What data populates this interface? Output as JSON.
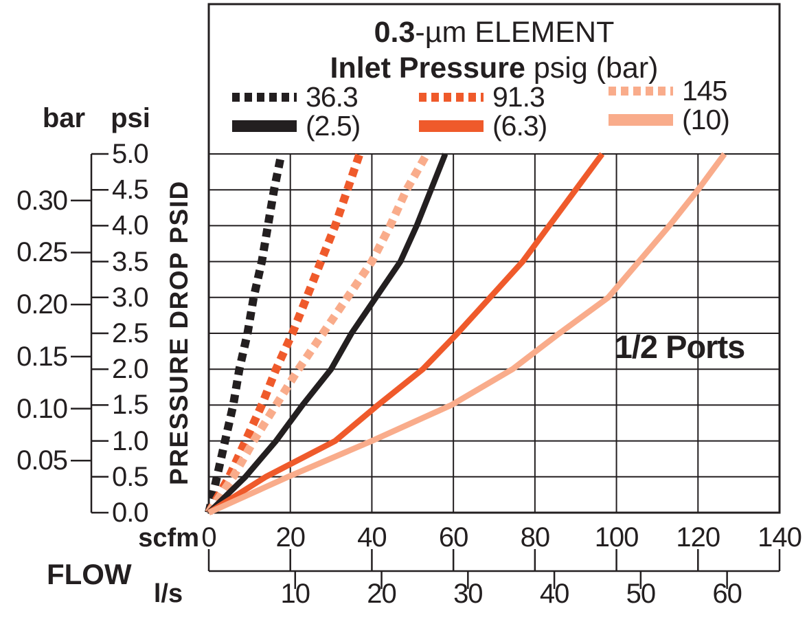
{
  "title": {
    "bold": "0.3",
    "rest": "-µm ELEMENT",
    "sub_bold": "Inlet Pressure",
    "sub_rest": " psig (bar)"
  },
  "legend": {
    "items": [
      {
        "psig": "36.3",
        "bar": "(2.5)",
        "color": "#231F20"
      },
      {
        "psig": "91.3",
        "bar": "(6.3)",
        "color": "#EF5A2B"
      },
      {
        "psig": "145",
        "bar": "(10)",
        "color": "#F9AC8B"
      }
    ]
  },
  "annotation": "1/2 Ports",
  "axis_labels": {
    "y_unit_left": "bar",
    "y_unit_right": "psi",
    "y_axis_title": "PRESSURE DROP PSID",
    "x_unit_top": "scfm",
    "x_axis_title": "FLOW",
    "x_unit_bottom": "l/s"
  },
  "chart_data": {
    "type": "line",
    "title": "0.3-µm ELEMENT",
    "subtitle": "Inlet Pressure psig (bar)",
    "xlabel": "FLOW scfm (l/s)",
    "ylabel": "PRESSURE DROP PSID bar / psi",
    "grid": true,
    "legend_position": "top",
    "x_axis": {
      "scfm_ticks": [
        "0",
        "20",
        "40",
        "60",
        "80",
        "100",
        "120",
        "140"
      ],
      "ls_ticks": [
        "10",
        "20",
        "30",
        "40",
        "50",
        "60"
      ],
      "scfm_per_ls": 2.1189,
      "xlim_scfm": [
        0,
        140
      ]
    },
    "y_axis": {
      "psi_ticks": [
        "0.0",
        "0.5",
        "1.0",
        "1.5",
        "2.0",
        "2.5",
        "3.0",
        "3.5",
        "4.0",
        "4.5",
        "5.0"
      ],
      "bar_ticks": [
        "0.05",
        "0.10",
        "0.15",
        "0.20",
        "0.25",
        "0.30"
      ],
      "psi_per_bar": 14.5038,
      "ylim_psi": [
        0,
        5
      ]
    },
    "series": [
      {
        "name": "36.3 psig (2.5 bar) inlet - dashed",
        "inlet_psig": 36.3,
        "inlet_bar": 2.5,
        "style": "dashed",
        "color": "#231F20",
        "points_scfm_psi": [
          [
            0,
            0
          ],
          [
            2,
            0.5
          ],
          [
            4,
            1.0
          ],
          [
            6,
            1.5
          ],
          [
            7.5,
            2.0
          ],
          [
            9.5,
            2.5
          ],
          [
            11,
            3.0
          ],
          [
            13,
            3.5
          ],
          [
            14.5,
            4.0
          ],
          [
            16,
            4.5
          ],
          [
            17.8,
            5.0
          ]
        ]
      },
      {
        "name": "91.3 psig (6.3 bar) inlet - dashed",
        "inlet_psig": 91.3,
        "inlet_bar": 6.3,
        "style": "dashed",
        "color": "#EF5A2B",
        "points_scfm_psi": [
          [
            0,
            0
          ],
          [
            5,
            0.5
          ],
          [
            9,
            1.0
          ],
          [
            13,
            1.5
          ],
          [
            16.5,
            2.0
          ],
          [
            20.5,
            2.5
          ],
          [
            24,
            3.0
          ],
          [
            27.5,
            3.5
          ],
          [
            31,
            4.0
          ],
          [
            34,
            4.5
          ],
          [
            37,
            5.0
          ]
        ]
      },
      {
        "name": "145 psig (10 bar) inlet - dashed",
        "inlet_psig": 145,
        "inlet_bar": 10,
        "style": "dashed",
        "color": "#F9AC8B",
        "points_scfm_psi": [
          [
            0,
            0
          ],
          [
            6,
            0.5
          ],
          [
            11,
            1.0
          ],
          [
            16.5,
            1.5
          ],
          [
            22,
            2.0
          ],
          [
            28,
            2.5
          ],
          [
            34,
            3.0
          ],
          [
            40,
            3.5
          ],
          [
            44.5,
            4.0
          ],
          [
            48.5,
            4.5
          ],
          [
            53.5,
            5.0
          ]
        ]
      },
      {
        "name": "36.3 psig (2.5 bar) inlet - solid",
        "inlet_psig": 36.3,
        "inlet_bar": 2.5,
        "style": "solid",
        "color": "#231F20",
        "points_scfm_psi": [
          [
            0,
            0
          ],
          [
            9,
            0.5
          ],
          [
            16.5,
            1.0
          ],
          [
            23,
            1.5
          ],
          [
            30,
            2.0
          ],
          [
            35,
            2.5
          ],
          [
            41,
            3.0
          ],
          [
            47,
            3.5
          ],
          [
            51,
            4.0
          ],
          [
            54.5,
            4.5
          ],
          [
            58,
            5.0
          ]
        ]
      },
      {
        "name": "91.3 psig (6.3 bar) inlet - solid",
        "inlet_psig": 91.3,
        "inlet_bar": 6.3,
        "style": "solid",
        "color": "#EF5A2B",
        "points_scfm_psi": [
          [
            0,
            0
          ],
          [
            14,
            0.5
          ],
          [
            31,
            1.0
          ],
          [
            41.5,
            1.5
          ],
          [
            52.5,
            2.0
          ],
          [
            61,
            2.5
          ],
          [
            69,
            3.0
          ],
          [
            77,
            3.5
          ],
          [
            83.5,
            4.0
          ],
          [
            90,
            4.5
          ],
          [
            96.5,
            5.0
          ]
        ]
      },
      {
        "name": "145 psig (10 bar) inlet - solid",
        "inlet_psig": 145,
        "inlet_bar": 10,
        "style": "solid",
        "color": "#F9AC8B",
        "points_scfm_psi": [
          [
            0,
            0
          ],
          [
            19.5,
            0.5
          ],
          [
            40,
            1.0
          ],
          [
            59.5,
            1.5
          ],
          [
            74.5,
            2.0
          ],
          [
            86,
            2.5
          ],
          [
            98,
            3.0
          ],
          [
            105.5,
            3.5
          ],
          [
            113,
            4.0
          ],
          [
            120,
            4.5
          ],
          [
            126.5,
            5.0
          ]
        ]
      }
    ]
  }
}
